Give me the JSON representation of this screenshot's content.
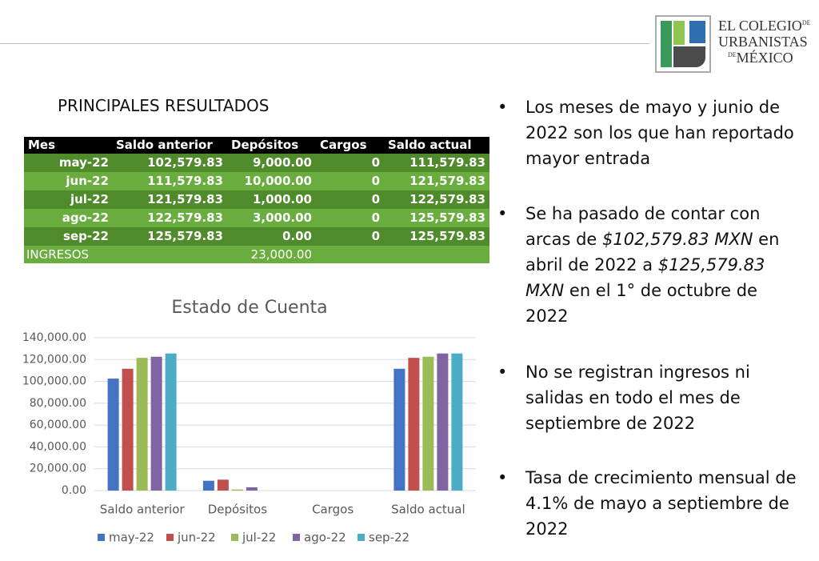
{
  "header": {
    "logo": {
      "line1": "EL COLEGIO",
      "de1": "DE",
      "line2": "URBANISTAS",
      "de2": "DE",
      "line3": "MÉXICO"
    }
  },
  "section_title": "PRINCIPALES RESULTADOS",
  "table": {
    "columns": [
      "Mes",
      "Saldo anterior",
      "Depósitos",
      "Cargos",
      "Saldo actual"
    ],
    "rows": [
      [
        "may-22",
        "102,579.83",
        "9,000.00",
        "0",
        "111,579.83"
      ],
      [
        "jun-22",
        "111,579.83",
        "10,000.00",
        "0",
        "121,579.83"
      ],
      [
        "jul-22",
        "121,579.83",
        "1,000.00",
        "0",
        "122,579.83"
      ],
      [
        "ago-22",
        "122,579.83",
        "3,000.00",
        "0",
        "125,579.83"
      ],
      [
        "sep-22",
        "125,579.83",
        "0.00",
        "0",
        "125,579.83"
      ]
    ],
    "footer": {
      "label": "INGRESOS",
      "total": "23,000.00"
    }
  },
  "chart_data": {
    "type": "bar",
    "title": "Estado de Cuenta",
    "categories": [
      "Saldo anterior",
      "Depósitos",
      "Cargos",
      "Saldo actual"
    ],
    "series": [
      {
        "name": "may-22",
        "color": "#4472c4",
        "values": [
          102579.83,
          9000,
          0,
          111579.83
        ]
      },
      {
        "name": "jun-22",
        "color": "#c0504d",
        "values": [
          111579.83,
          10000,
          0,
          121579.83
        ]
      },
      {
        "name": "jul-22",
        "color": "#9bbb59",
        "values": [
          121579.83,
          1000,
          0,
          122579.83
        ]
      },
      {
        "name": "ago-22",
        "color": "#8064a2",
        "values": [
          122579.83,
          3000,
          0,
          125579.83
        ]
      },
      {
        "name": "sep-22",
        "color": "#4bacc6",
        "values": [
          125579.83,
          0,
          0,
          125579.83
        ]
      }
    ],
    "ylim": [
      0,
      140000
    ],
    "yticks": [
      {
        "value": 0,
        "label": "0.00"
      },
      {
        "value": 20000,
        "label": "20,000.00"
      },
      {
        "value": 40000,
        "label": "40,000.00"
      },
      {
        "value": 60000,
        "label": "60,000.00"
      },
      {
        "value": 80000,
        "label": "80,000.00"
      },
      {
        "value": 100000,
        "label": "100,000.00"
      },
      {
        "value": 120000,
        "label": "120,000.00"
      },
      {
        "value": 140000,
        "label": "140,000.00"
      }
    ],
    "grid": true,
    "legend": "bottom"
  },
  "bullets": [
    {
      "segments": [
        {
          "text": "Los meses de mayo y junio de 2022 son los que han reportado mayor entrada"
        }
      ]
    },
    {
      "segments": [
        {
          "text": "Se ha pasado de contar con arcas de "
        },
        {
          "text": "$102,579.83 MXN",
          "italic": true
        },
        {
          "text": " en abril de 2022 a "
        },
        {
          "text": "$125,579.83 MXN",
          "italic": true
        },
        {
          "text": " en el 1° de octubre de 2022"
        }
      ]
    },
    {
      "segments": [
        {
          "text": "No se registran ingresos ni salidas en todo el mes de septiembre de 2022"
        }
      ]
    },
    {
      "segments": [
        {
          "text": "Tasa de crecimiento mensual de 4.1% de mayo a septiembre de 2022"
        }
      ]
    }
  ]
}
